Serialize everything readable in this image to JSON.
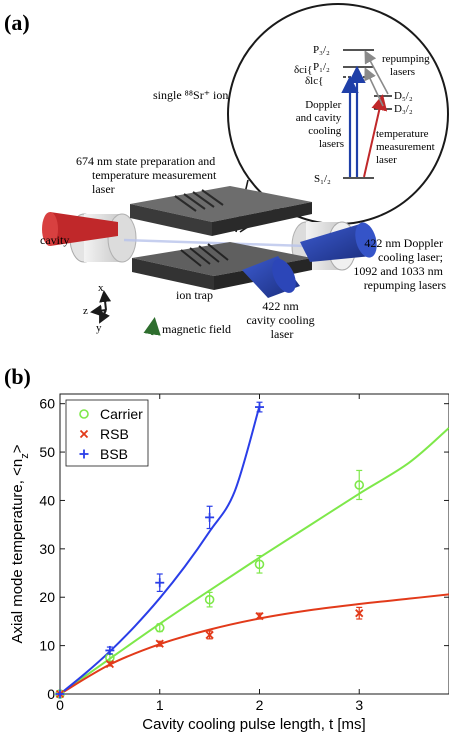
{
  "panel_a": {
    "label": "(a)",
    "ion_label": "single ⁸⁸Sr⁺ ion",
    "laser_674_line1": "674 nm state preparation and",
    "laser_674_line2": "temperature measurement",
    "laser_674_line3": "laser",
    "cavity_label": "cavity",
    "ion_trap_label": "ion trap",
    "cav_cool_line1": "422 nm",
    "cav_cool_line2": "cavity cooling",
    "cav_cool_line3": "laser",
    "doppler_line1": "422 nm Doppler",
    "doppler_line2": "cooling laser;",
    "doppler_line3": "1092 and 1033 nm",
    "doppler_line4": "repumping lasers",
    "axis_x": "x",
    "axis_y": "y",
    "axis_z": "z",
    "magnetic_field_label": "magnetic field",
    "levels": {
      "p32": "P₃/₂",
      "p12": "P₁/₂",
      "d52": "D₅/₂",
      "d32": "D₃/₂",
      "s12": "S₁/₂",
      "delta_ci": "δci{",
      "delta_lc": "δlc{"
    },
    "inset": {
      "repump_line1": "repumping",
      "repump_line2": "lasers",
      "doppler_line1": "Doppler",
      "doppler_line2": "and cavity",
      "doppler_line3": "cooling",
      "doppler_line4": "lasers",
      "temp_line1": "temperature",
      "temp_line2": "measurement",
      "temp_line3": "laser"
    },
    "colors": {
      "red_laser": "#c0282a",
      "blue_laser": "#1f3fa8",
      "trap": "#4a4a4a",
      "field_arrow": "#2e6e2e"
    }
  },
  "panel_b": {
    "label": "(b)"
  },
  "chart_data": {
    "type": "scatter",
    "xlabel": "Cavity cooling pulse length, t [ms]",
    "ylabel": "Axial mode temperature, <n",
    "ylabel_sub": "z",
    "ylabel_end": ">",
    "xlim": [
      0,
      3.9
    ],
    "ylim": [
      0,
      62
    ],
    "xticks": [
      0,
      1,
      2,
      3
    ],
    "yticks": [
      0,
      10,
      20,
      30,
      40,
      50,
      60
    ],
    "grid": false,
    "legend_position": "top-left",
    "series": [
      {
        "name": "Carrier",
        "marker": "circle",
        "color": "#7ee84a",
        "points": [
          {
            "x": 0,
            "y": 0,
            "err": 0
          },
          {
            "x": 0.5,
            "y": 7.5,
            "err": 0.7
          },
          {
            "x": 1,
            "y": 13.7,
            "err": 0.8
          },
          {
            "x": 1.5,
            "y": 19.5,
            "err": 1.5
          },
          {
            "x": 2,
            "y": 26.8,
            "err": 1.8
          },
          {
            "x": 3,
            "y": 43.2,
            "err": 3.0
          }
        ],
        "fit": [
          [
            0,
            0
          ],
          [
            0.5,
            7.3
          ],
          [
            1,
            14.5
          ],
          [
            1.5,
            21.4
          ],
          [
            2,
            28.2
          ],
          [
            2.5,
            34.8
          ],
          [
            3,
            41.4
          ],
          [
            3.5,
            47.8
          ],
          [
            3.9,
            55
          ]
        ]
      },
      {
        "name": "RSB",
        "marker": "x",
        "color": "#e23a1a",
        "points": [
          {
            "x": 0,
            "y": 0,
            "err": 0
          },
          {
            "x": 0.5,
            "y": 6.2,
            "err": 0.4
          },
          {
            "x": 1,
            "y": 10.4,
            "err": 0.5
          },
          {
            "x": 1.5,
            "y": 12.2,
            "err": 0.8
          },
          {
            "x": 2,
            "y": 16.1,
            "err": 0.6
          },
          {
            "x": 3,
            "y": 16.7,
            "err": 1.2
          }
        ],
        "fit": [
          [
            0,
            0
          ],
          [
            0.5,
            6.1
          ],
          [
            1,
            10.3
          ],
          [
            1.5,
            13.3
          ],
          [
            2,
            15.6
          ],
          [
            2.5,
            17.3
          ],
          [
            3,
            18.6
          ],
          [
            3.5,
            19.7
          ],
          [
            3.9,
            20.6
          ]
        ]
      },
      {
        "name": "BSB",
        "marker": "plus",
        "color": "#2a3ee8",
        "points": [
          {
            "x": 0,
            "y": 0,
            "err": 0
          },
          {
            "x": 0.5,
            "y": 9.0,
            "err": 0.7
          },
          {
            "x": 1,
            "y": 23.0,
            "err": 1.8
          },
          {
            "x": 1.5,
            "y": 36.5,
            "err": 2.3
          },
          {
            "x": 2,
            "y": 59.3,
            "err": 1.0
          }
        ],
        "fit": [
          [
            0,
            0
          ],
          [
            0.25,
            4.2
          ],
          [
            0.5,
            8.8
          ],
          [
            0.75,
            14.0
          ],
          [
            1,
            19.8
          ],
          [
            1.25,
            26.3
          ],
          [
            1.5,
            33.6
          ],
          [
            1.75,
            41.8
          ],
          [
            2,
            59.5
          ]
        ]
      }
    ]
  }
}
